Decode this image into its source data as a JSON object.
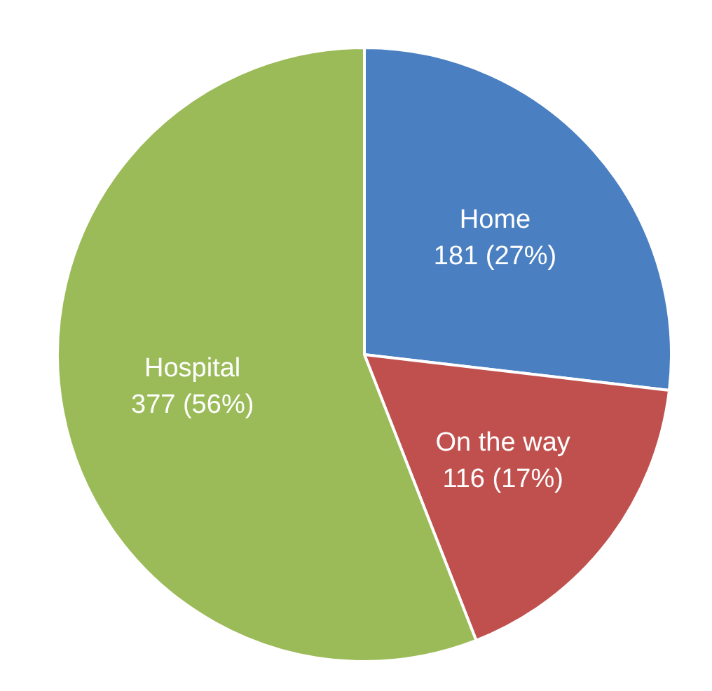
{
  "chart_data": {
    "type": "pie",
    "categories": [
      "Home",
      "On the way",
      "Hospital"
    ],
    "values": [
      181,
      116,
      377
    ],
    "value_labels": [
      "181 (27%)",
      "116 (17%)",
      "377 (56%)"
    ],
    "colors": [
      "#4a7fc1",
      "#c0504d",
      "#9bbb59"
    ],
    "legend": false
  }
}
